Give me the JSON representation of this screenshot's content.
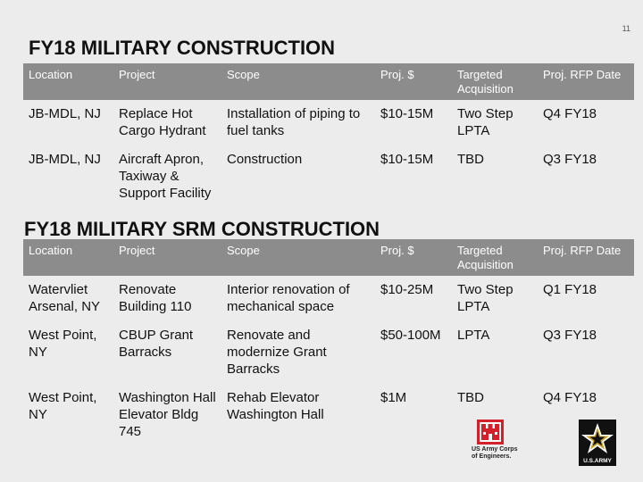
{
  "page_number": "11",
  "section1": {
    "title": "FY18 MILITARY CONSTRUCTION",
    "headers": [
      "Location",
      "Project",
      "Scope",
      "Proj. $",
      "Targeted Acquisition",
      "Proj. RFP Date"
    ],
    "rows": [
      [
        "JB-MDL, NJ",
        "Replace Hot Cargo Hydrant",
        "Installation of piping to fuel tanks",
        "$10-15M",
        "Two Step LPTA",
        "Q4 FY18"
      ],
      [
        "JB-MDL, NJ",
        "Aircraft Apron, Taxiway & Support Facility",
        "Construction",
        "$10-15M",
        "TBD",
        "Q3 FY18"
      ]
    ]
  },
  "section2": {
    "title": "FY18 MILITARY SRM CONSTRUCTION",
    "headers": [
      "Location",
      "Project",
      "Scope",
      "Proj. $",
      "Targeted Acquisition",
      "Proj. RFP Date"
    ],
    "rows": [
      [
        "Watervliet Arsenal, NY",
        "Renovate Building 110",
        "Interior renovation of mechanical space",
        "$10-25M",
        "Two Step LPTA",
        "Q1 FY18"
      ],
      [
        "West Point, NY",
        "CBUP Grant Barracks",
        "Renovate and modernize Grant Barracks",
        "$50-100M",
        "LPTA",
        "Q3 FY18"
      ],
      [
        "West Point, NY",
        "Washington Hall Elevator Bldg 745",
        "Rehab Elevator Washington Hall",
        "$1M",
        "TBD",
        "Q4 FY18"
      ]
    ]
  },
  "logos": {
    "corps": {
      "line1": "US Army Corps",
      "line2": "of Engineers.",
      "color": "#d4202a"
    },
    "army": {
      "text": "U.S.ARMY",
      "star_color": "#c9a227"
    }
  }
}
